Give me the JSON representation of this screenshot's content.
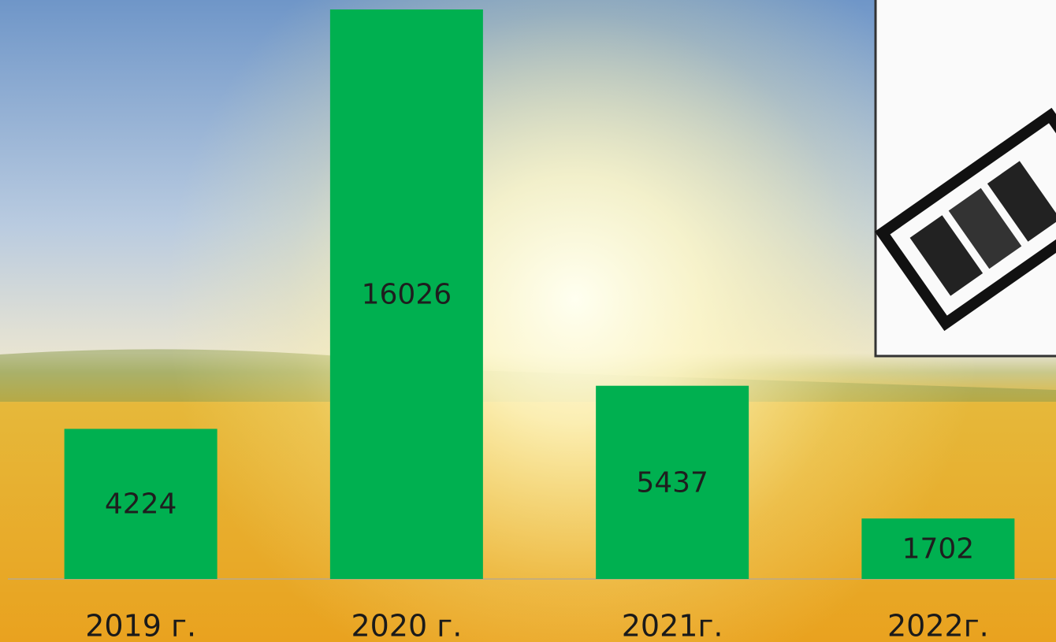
{
  "chart_data": {
    "type": "bar",
    "categories": [
      "2019 г.",
      "2020 г.",
      "2021г.",
      "2022г."
    ],
    "values": [
      4224,
      16026,
      5437,
      1702
    ],
    "color": "#00b050"
  }
}
